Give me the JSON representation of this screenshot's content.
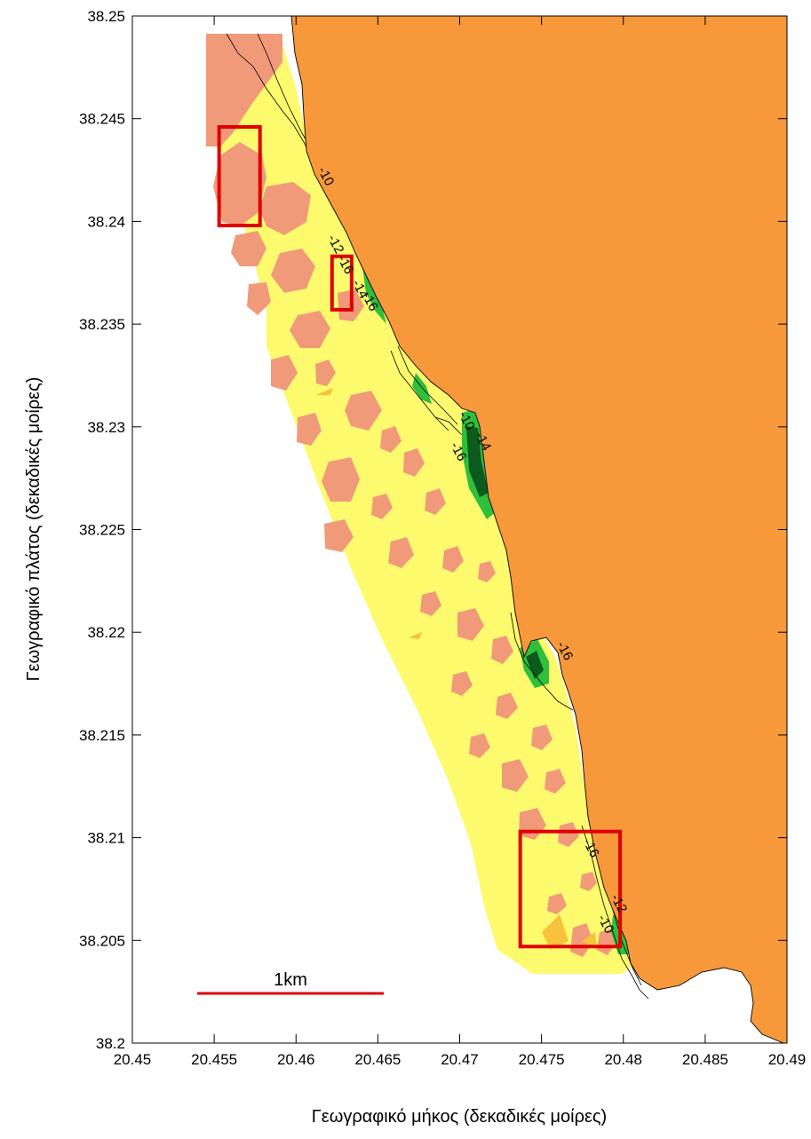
{
  "map": {
    "xlabel": "Γεωγραφικό μήκος (δεκαδικές μοίρες)",
    "ylabel": "Γεωγραφικό πλάτος (δεκαδικές μοίρες)",
    "xlim": [
      20.45,
      20.49
    ],
    "ylim": [
      38.2,
      38.25
    ],
    "x_ticks": [
      "20.45",
      "20.455",
      "20.46",
      "20.465",
      "20.47",
      "20.475",
      "20.48",
      "20.485",
      "20.49"
    ],
    "y_ticks": [
      "38.25",
      "38.245",
      "38.24",
      "38.235",
      "38.23",
      "38.225",
      "38.22",
      "38.215",
      "38.21",
      "38.205",
      "38.2"
    ],
    "scale_bar": {
      "label": "1km",
      "color": "#e00000"
    },
    "colors": {
      "land": "#f7983a",
      "sea_shallow": "#fdfa6e",
      "patches": "#f19a7a",
      "contour_green": "#2fbf3a",
      "contour_dark": "#0d5a1e",
      "highlight_boxes": "#e00000"
    },
    "contour_labels": [
      {
        "text": "-10",
        "lon": 20.4616,
        "lat": 38.2421
      },
      {
        "text": "-12",
        "lon": 20.4622,
        "lat": 38.2388
      },
      {
        "text": "-16",
        "lon": 20.4628,
        "lat": 38.2378
      },
      {
        "text": "-14",
        "lon": 20.4637,
        "lat": 38.2366
      },
      {
        "text": "-16",
        "lon": 20.4643,
        "lat": 38.236
      },
      {
        "text": "-10",
        "lon": 20.4702,
        "lat": 38.2302
      },
      {
        "text": "-14",
        "lon": 20.4712,
        "lat": 38.2292
      },
      {
        "text": "-16",
        "lon": 20.4697,
        "lat": 38.2287
      },
      {
        "text": "-16",
        "lon": 20.4762,
        "lat": 38.219
      },
      {
        "text": "-16",
        "lon": 20.4778,
        "lat": 38.2094
      },
      {
        "text": "-10",
        "lon": 20.4787,
        "lat": 38.2057
      },
      {
        "text": "-12",
        "lon": 20.4795,
        "lat": 38.2067
      }
    ],
    "highlight_boxes": [
      {
        "lon": [
          20.4553,
          20.4578
        ],
        "lat": [
          38.2398,
          38.2446
        ]
      },
      {
        "lon": [
          20.4622,
          20.4634
        ],
        "lat": [
          38.2357,
          38.2383
        ]
      },
      {
        "lon": [
          20.4737,
          20.4798
        ],
        "lat": [
          38.2047,
          38.2103
        ]
      }
    ]
  }
}
